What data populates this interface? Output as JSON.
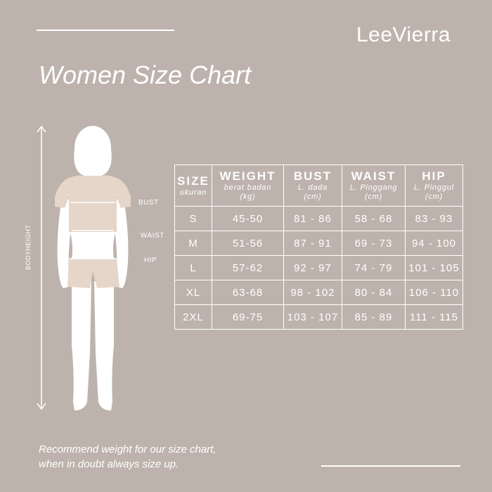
{
  "brand": {
    "logo": "LeeVierra"
  },
  "title": "Women Size Chart",
  "body_labels": {
    "bust": "BUST",
    "waist": "WAIST",
    "hip": "HIP",
    "height": "BODYHEIGHT"
  },
  "table": {
    "headers": [
      {
        "main": "SIZE",
        "sub": "ukuran"
      },
      {
        "main": "WEIGHT",
        "sub": "berat badan (kg)"
      },
      {
        "main": "BUST",
        "sub": "L. dada (cm)"
      },
      {
        "main": "WAIST",
        "sub": "L. Pinggang (cm)"
      },
      {
        "main": "HIP",
        "sub": "L. Pinggul (cm)"
      }
    ],
    "rows": [
      [
        "S",
        "45-50",
        "81 - 86",
        "58 - 68",
        "83 - 93"
      ],
      [
        "M",
        "51-56",
        "87 - 91",
        "69 - 73",
        "94 - 100"
      ],
      [
        "L",
        "57-62",
        "92 - 97",
        "74 - 79",
        "101 - 105"
      ],
      [
        "XL",
        "63-68",
        "98 - 102",
        "80 - 84",
        "106 - 110"
      ],
      [
        "2XL",
        "69-75",
        "103 - 107",
        "85 - 89",
        "111 - 115"
      ]
    ]
  },
  "note": {
    "line1": "Recommend weight for our size chart,",
    "line2": "when in doubt always size up."
  },
  "colors": {
    "background": "#bdb3ac",
    "text": "#ffffff",
    "garment": "#e6d6ca"
  }
}
